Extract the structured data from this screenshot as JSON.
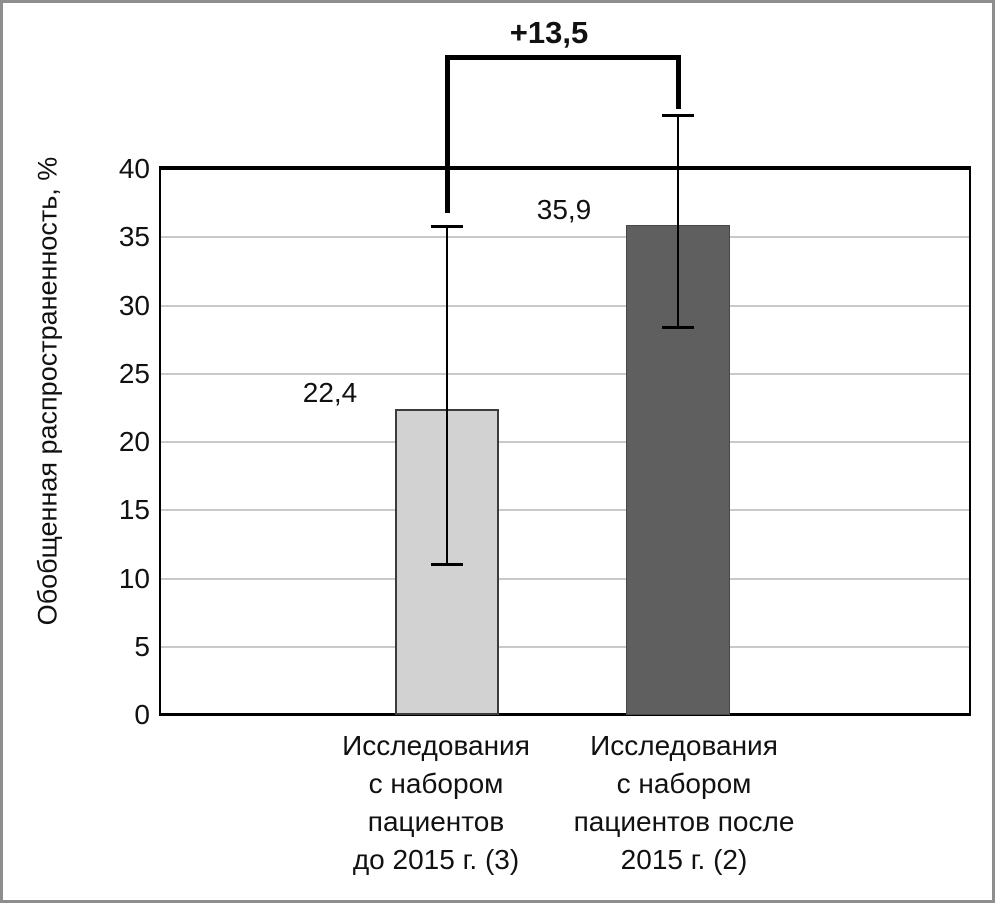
{
  "figure": {
    "border_color": "#8e8e8e",
    "background": "#ffffff",
    "axis_color": "#000000",
    "gridline_color": "#c9c9c9",
    "text_color": "#111111"
  },
  "chart_data": {
    "type": "bar",
    "title": "",
    "xlabel": "",
    "ylabel": "Обобщенная распространенность, %",
    "ylim": [
      0,
      40
    ],
    "ytick_step": 5,
    "yticks": [
      0,
      5,
      10,
      15,
      20,
      25,
      30,
      35,
      40
    ],
    "grid": true,
    "legend": "none",
    "categories": [
      "Исследования с набором пациентов до 2015 г. (3)",
      "Исследования с набором пациентов после 2015 г. (2)"
    ],
    "category_label_lines": [
      "Исследования\nс набором\nпациентов\nдо 2015 г. (3)",
      "Исследования\nс набором\nпациентов после\n2015 г. (2)"
    ],
    "values": [
      22.4,
      35.9
    ],
    "value_labels": [
      "22,4",
      "35,9"
    ],
    "error_bars": [
      {
        "low": 11.0,
        "high": 35.8
      },
      {
        "low": 28.4,
        "high": 43.9
      }
    ],
    "bar_colors": [
      "#d2d2d2",
      "#5f5f5f"
    ],
    "bar_border_colors": [
      "#3c3c3c",
      "#474747"
    ],
    "annotation": "+13,5"
  }
}
